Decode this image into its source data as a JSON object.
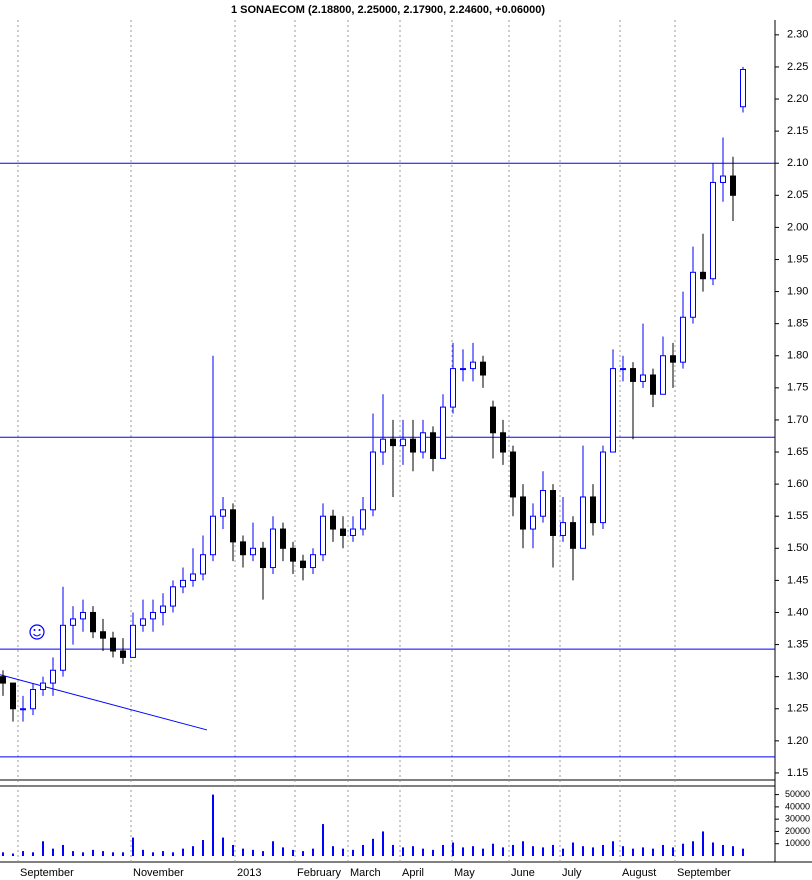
{
  "chart_data": {
    "type": "candlestick",
    "title": "1 SONAECOM (2.18800, 2.25000, 2.17900, 2.24600, +0.06000)",
    "open": [
      1.3,
      1.29,
      1.25,
      1.25,
      1.28,
      1.29,
      1.31,
      1.38,
      1.39,
      1.4,
      1.37,
      1.36,
      1.34,
      1.33,
      1.38,
      1.39,
      1.4,
      1.41,
      1.44,
      1.45,
      1.46,
      1.49,
      1.55,
      1.56,
      1.51,
      1.49,
      1.5,
      1.47,
      1.53,
      1.5,
      1.48,
      1.47,
      1.49,
      1.55,
      1.53,
      1.52,
      1.53,
      1.56,
      1.65,
      1.67,
      1.66,
      1.67,
      1.65,
      1.68,
      1.64,
      1.72,
      1.78,
      1.78,
      1.79,
      1.72,
      1.68,
      1.65,
      1.58,
      1.53,
      1.55,
      1.59,
      1.52,
      1.54,
      1.5,
      1.58,
      1.54,
      1.65,
      1.78,
      1.78,
      1.76,
      1.77,
      1.74,
      1.8,
      1.79,
      1.86,
      1.93,
      1.92,
      2.07,
      2.08,
      2.188
    ],
    "high": [
      1.31,
      1.29,
      1.27,
      1.29,
      1.3,
      1.33,
      1.44,
      1.41,
      1.42,
      1.41,
      1.39,
      1.37,
      1.36,
      1.4,
      1.42,
      1.42,
      1.43,
      1.45,
      1.47,
      1.5,
      1.52,
      1.8,
      1.58,
      1.57,
      1.52,
      1.54,
      1.51,
      1.55,
      1.54,
      1.51,
      1.49,
      1.5,
      1.57,
      1.56,
      1.55,
      1.55,
      1.58,
      1.71,
      1.74,
      1.7,
      1.7,
      1.7,
      1.7,
      1.69,
      1.74,
      1.82,
      1.81,
      1.82,
      1.8,
      1.73,
      1.7,
      1.66,
      1.6,
      1.57,
      1.62,
      1.6,
      1.58,
      1.55,
      1.66,
      1.6,
      1.66,
      1.81,
      1.8,
      1.79,
      1.85,
      1.78,
      1.83,
      1.82,
      1.9,
      1.97,
      1.99,
      2.1,
      2.14,
      2.11,
      2.25
    ],
    "low": [
      1.27,
      1.23,
      1.23,
      1.24,
      1.27,
      1.27,
      1.3,
      1.35,
      1.37,
      1.36,
      1.34,
      1.33,
      1.32,
      1.33,
      1.37,
      1.37,
      1.38,
      1.4,
      1.43,
      1.44,
      1.45,
      1.48,
      1.53,
      1.48,
      1.47,
      1.48,
      1.42,
      1.46,
      1.48,
      1.46,
      1.45,
      1.46,
      1.48,
      1.51,
      1.5,
      1.51,
      1.52,
      1.55,
      1.63,
      1.58,
      1.63,
      1.62,
      1.64,
      1.62,
      1.64,
      1.71,
      1.76,
      1.76,
      1.75,
      1.64,
      1.63,
      1.55,
      1.5,
      1.5,
      1.54,
      1.47,
      1.51,
      1.45,
      1.5,
      1.52,
      1.53,
      1.65,
      1.76,
      1.67,
      1.75,
      1.72,
      1.74,
      1.75,
      1.78,
      1.85,
      1.9,
      1.91,
      2.04,
      2.01,
      2.179
    ],
    "close": [
      1.29,
      1.25,
      1.25,
      1.28,
      1.29,
      1.31,
      1.38,
      1.39,
      1.4,
      1.37,
      1.36,
      1.34,
      1.33,
      1.38,
      1.39,
      1.4,
      1.41,
      1.44,
      1.45,
      1.46,
      1.49,
      1.55,
      1.56,
      1.51,
      1.49,
      1.5,
      1.47,
      1.53,
      1.5,
      1.48,
      1.47,
      1.49,
      1.55,
      1.53,
      1.52,
      1.53,
      1.56,
      1.65,
      1.67,
      1.66,
      1.67,
      1.65,
      1.68,
      1.64,
      1.72,
      1.78,
      1.78,
      1.79,
      1.77,
      1.68,
      1.65,
      1.58,
      1.53,
      1.55,
      1.59,
      1.52,
      1.54,
      1.5,
      1.58,
      1.54,
      1.65,
      1.78,
      1.78,
      1.76,
      1.77,
      1.74,
      1.8,
      1.79,
      1.86,
      1.93,
      1.92,
      2.07,
      2.08,
      2.05,
      2.246
    ],
    "volume": [
      3000,
      2000,
      4000,
      3000,
      12000,
      6000,
      9000,
      4000,
      3000,
      5000,
      4000,
      3000,
      3000,
      15000,
      5000,
      3000,
      4000,
      3000,
      6000,
      8000,
      13000,
      50000,
      15000,
      9000,
      6000,
      5000,
      4000,
      12000,
      7000,
      5000,
      4000,
      6000,
      26000,
      8000,
      6000,
      5000,
      9000,
      14000,
      20000,
      9000,
      7000,
      8000,
      6000,
      5000,
      9000,
      11000,
      7000,
      8000,
      6000,
      10000,
      7000,
      9000,
      12000,
      8000,
      7000,
      9000,
      6000,
      11000,
      8000,
      7000,
      9000,
      12000,
      8000,
      6000,
      7000,
      6000,
      9000,
      7000,
      10000,
      12000,
      20000,
      11000,
      9000,
      8000,
      6000
    ],
    "up_color": "#0000ff",
    "down_color": "#000000",
    "volume_color": "#0000ff",
    "xlim": [
      -0.3,
      77.2
    ],
    "xticks": [
      {
        "value": 1.5,
        "label": "September"
      },
      {
        "value": 12.8,
        "label": "November"
      },
      {
        "value": 23.2,
        "label": "2013"
      },
      {
        "value": 29.2,
        "label": "February"
      },
      {
        "value": 34.5,
        "label": "March"
      },
      {
        "value": 39.7,
        "label": "April"
      },
      {
        "value": 44.9,
        "label": "May"
      },
      {
        "value": 50.6,
        "label": "June"
      },
      {
        "value": 55.7,
        "label": "July"
      },
      {
        "value": 61.7,
        "label": "August"
      },
      {
        "value": 67.2,
        "label": "September"
      }
    ],
    "ylim": [
      1.139,
      2.32
    ],
    "yticks": [
      {
        "value": 2.3,
        "label": "2.30"
      },
      {
        "value": 2.25,
        "label": "2.25"
      },
      {
        "value": 2.2,
        "label": "2.20"
      },
      {
        "value": 2.15,
        "label": "2.15"
      },
      {
        "value": 2.1,
        "label": "2.10"
      },
      {
        "value": 2.05,
        "label": "2.05"
      },
      {
        "value": 2.0,
        "label": "2.00"
      },
      {
        "value": 1.95,
        "label": "1.95"
      },
      {
        "value": 1.9,
        "label": "1.90"
      },
      {
        "value": 1.85,
        "label": "1.85"
      },
      {
        "value": 1.8,
        "label": "1.80"
      },
      {
        "value": 1.75,
        "label": "1.75"
      },
      {
        "value": 1.7,
        "label": "1.70"
      },
      {
        "value": 1.65,
        "label": "1.65"
      },
      {
        "value": 1.6,
        "label": "1.60"
      },
      {
        "value": 1.55,
        "label": "1.55"
      },
      {
        "value": 1.5,
        "label": "1.50"
      },
      {
        "value": 1.45,
        "label": "1.45"
      },
      {
        "value": 1.4,
        "label": "1.40"
      },
      {
        "value": 1.35,
        "label": "1.35"
      },
      {
        "value": 1.3,
        "label": "1.30"
      },
      {
        "value": 1.25,
        "label": "1.25"
      },
      {
        "value": 1.2,
        "label": "1.20"
      },
      {
        "value": 1.15,
        "label": "1.15"
      }
    ],
    "volume_ylim": [
      0,
      57000
    ],
    "volume_yticks": [
      10000,
      20000,
      30000,
      40000,
      50000
    ],
    "hlines": [
      2.1,
      1.673,
      1.343,
      1.175
    ],
    "trendline": {
      "x": [
        -0.3,
        20.4
      ],
      "y": [
        1.303,
        1.217
      ]
    },
    "grid": true
  }
}
